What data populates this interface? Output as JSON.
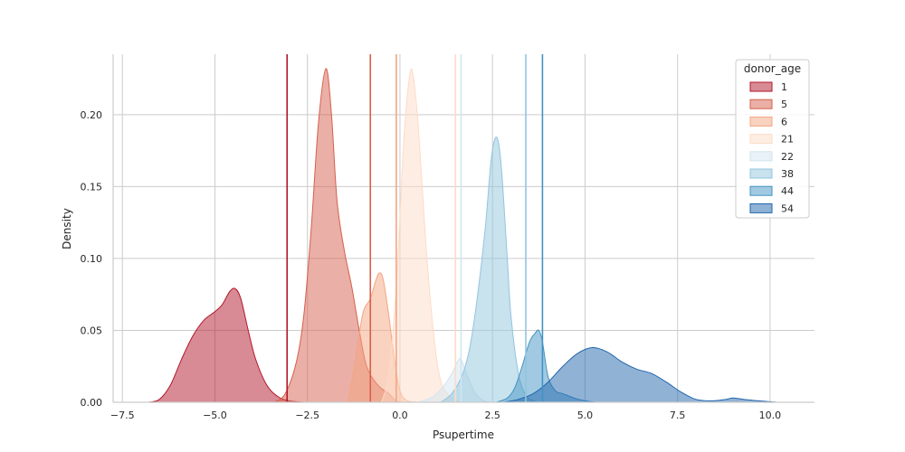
{
  "chart_data": {
    "type": "area",
    "xlabel": "Psupertime",
    "ylabel": "Density",
    "xlim": [
      -7.75,
      11.2
    ],
    "ylim": [
      0,
      0.242
    ],
    "xticks": [
      -7.5,
      -5.0,
      -2.5,
      0.0,
      2.5,
      5.0,
      7.5,
      10.0
    ],
    "xtick_labels": [
      "−7.5",
      "−5.0",
      "−2.5",
      "0.0",
      "2.5",
      "5.0",
      "7.5",
      "10.0"
    ],
    "yticks": [
      0.0,
      0.05,
      0.1,
      0.15,
      0.2
    ],
    "ytick_labels": [
      "0.00",
      "0.05",
      "0.10",
      "0.15",
      "0.20"
    ],
    "grid": true,
    "legend": {
      "title": "donor_age",
      "placement": "top-right"
    },
    "series": [
      {
        "name": "1",
        "color": "#b2182b",
        "vline": -3.05,
        "points": [
          [
            -6.8,
            0
          ],
          [
            -6.5,
            0.002
          ],
          [
            -6.2,
            0.012
          ],
          [
            -5.9,
            0.03
          ],
          [
            -5.6,
            0.046
          ],
          [
            -5.3,
            0.057
          ],
          [
            -5.0,
            0.063
          ],
          [
            -4.8,
            0.068
          ],
          [
            -4.6,
            0.077
          ],
          [
            -4.45,
            0.079
          ],
          [
            -4.3,
            0.072
          ],
          [
            -4.1,
            0.05
          ],
          [
            -3.9,
            0.03
          ],
          [
            -3.6,
            0.012
          ],
          [
            -3.3,
            0.004
          ],
          [
            -3.0,
            0.001
          ],
          [
            -2.6,
            0
          ]
        ]
      },
      {
        "name": "5",
        "color": "#d6604d",
        "vline": -0.8,
        "points": [
          [
            -3.4,
            0
          ],
          [
            -3.1,
            0.006
          ],
          [
            -2.8,
            0.028
          ],
          [
            -2.6,
            0.06
          ],
          [
            -2.4,
            0.12
          ],
          [
            -2.2,
            0.195
          ],
          [
            -2.0,
            0.232
          ],
          [
            -1.85,
            0.2
          ],
          [
            -1.7,
            0.14
          ],
          [
            -1.5,
            0.105
          ],
          [
            -1.3,
            0.08
          ],
          [
            -1.1,
            0.05
          ],
          [
            -0.9,
            0.025
          ],
          [
            -0.6,
            0.012
          ],
          [
            -0.3,
            0.006
          ],
          [
            -0.1,
            0.001
          ],
          [
            0.1,
            0
          ]
        ]
      },
      {
        "name": "6",
        "color": "#f4a582",
        "vline": -0.1,
        "points": [
          [
            -1.4,
            0
          ],
          [
            -1.2,
            0.03
          ],
          [
            -1.0,
            0.062
          ],
          [
            -0.8,
            0.072
          ],
          [
            -0.65,
            0.085
          ],
          [
            -0.55,
            0.09
          ],
          [
            -0.45,
            0.085
          ],
          [
            -0.3,
            0.06
          ],
          [
            -0.15,
            0.03
          ],
          [
            0.0,
            0.008
          ],
          [
            0.2,
            0.001
          ],
          [
            0.5,
            0
          ]
        ]
      },
      {
        "name": "21",
        "color": "#fddbc7",
        "vline": 1.5,
        "points": [
          [
            -0.5,
            0
          ],
          [
            -0.3,
            0.02
          ],
          [
            -0.1,
            0.08
          ],
          [
            0.1,
            0.18
          ],
          [
            0.25,
            0.225
          ],
          [
            0.35,
            0.228
          ],
          [
            0.5,
            0.19
          ],
          [
            0.7,
            0.11
          ],
          [
            0.9,
            0.05
          ],
          [
            1.1,
            0.015
          ],
          [
            1.4,
            0.003
          ],
          [
            1.7,
            0
          ]
        ]
      },
      {
        "name": "22",
        "color": "#d1e5f0",
        "vline": 1.65,
        "points": [
          [
            0.5,
            0
          ],
          [
            0.9,
            0.004
          ],
          [
            1.2,
            0.012
          ],
          [
            1.4,
            0.02
          ],
          [
            1.55,
            0.028
          ],
          [
            1.65,
            0.03
          ],
          [
            1.8,
            0.02
          ],
          [
            2.0,
            0.008
          ],
          [
            2.2,
            0.002
          ],
          [
            2.4,
            0
          ]
        ]
      },
      {
        "name": "38",
        "color": "#92c5de",
        "vline": 3.4,
        "points": [
          [
            1.1,
            0
          ],
          [
            1.4,
            0.006
          ],
          [
            1.7,
            0.02
          ],
          [
            1.9,
            0.04
          ],
          [
            2.1,
            0.075
          ],
          [
            2.3,
            0.12
          ],
          [
            2.45,
            0.165
          ],
          [
            2.55,
            0.182
          ],
          [
            2.65,
            0.182
          ],
          [
            2.75,
            0.16
          ],
          [
            2.9,
            0.1
          ],
          [
            3.0,
            0.06
          ],
          [
            3.2,
            0.02
          ],
          [
            3.4,
            0.005
          ],
          [
            3.6,
            0.001
          ],
          [
            3.8,
            0
          ]
        ]
      },
      {
        "name": "44",
        "color": "#4393c3",
        "vline": 3.85,
        "points": [
          [
            2.6,
            0
          ],
          [
            2.9,
            0.003
          ],
          [
            3.1,
            0.01
          ],
          [
            3.3,
            0.025
          ],
          [
            3.5,
            0.042
          ],
          [
            3.65,
            0.048
          ],
          [
            3.75,
            0.05
          ],
          [
            3.85,
            0.042
          ],
          [
            4.0,
            0.018
          ],
          [
            4.2,
            0.008
          ],
          [
            4.4,
            0.006
          ],
          [
            4.7,
            0.003
          ],
          [
            5.0,
            0.001
          ],
          [
            5.3,
            0
          ]
        ]
      },
      {
        "name": "54",
        "color": "#2166ac",
        "vline": null,
        "points": [
          [
            2.8,
            0
          ],
          [
            3.2,
            0.002
          ],
          [
            3.6,
            0.006
          ],
          [
            4.0,
            0.014
          ],
          [
            4.4,
            0.025
          ],
          [
            4.8,
            0.034
          ],
          [
            5.2,
            0.038
          ],
          [
            5.6,
            0.035
          ],
          [
            6.0,
            0.028
          ],
          [
            6.4,
            0.023
          ],
          [
            6.8,
            0.02
          ],
          [
            7.2,
            0.014
          ],
          [
            7.6,
            0.007
          ],
          [
            8.0,
            0.002
          ],
          [
            8.4,
            0.001
          ],
          [
            8.8,
            0.002
          ],
          [
            9.0,
            0.003
          ],
          [
            9.3,
            0.002
          ],
          [
            9.7,
            0.001
          ],
          [
            10.2,
            0
          ]
        ]
      }
    ]
  }
}
